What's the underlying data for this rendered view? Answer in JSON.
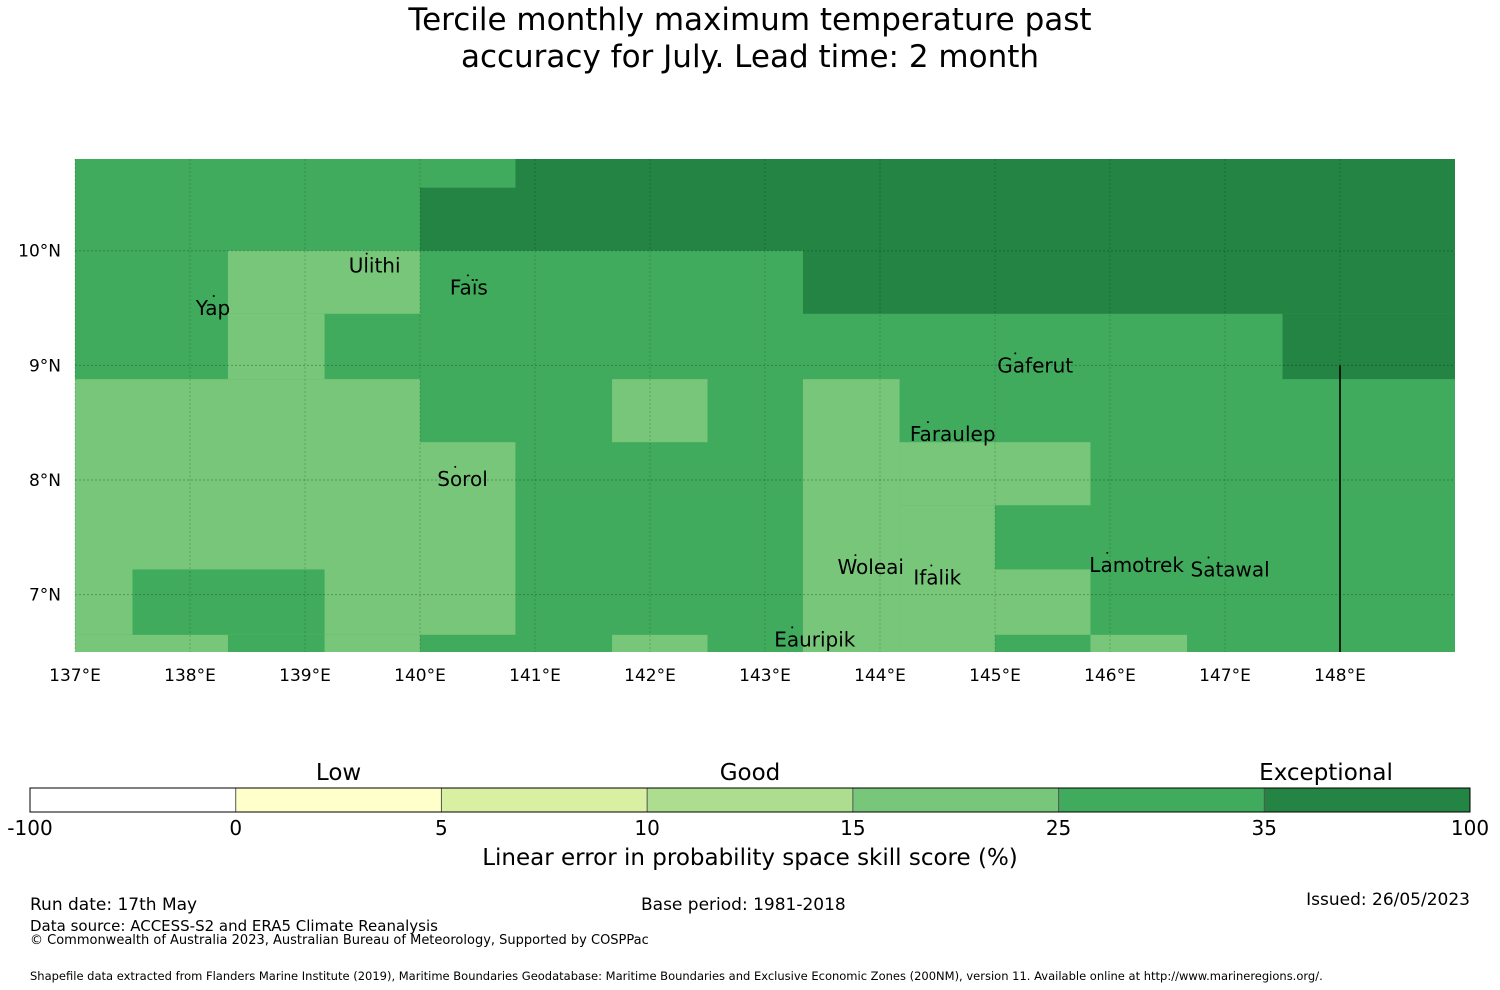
{
  "title": {
    "line1": "Tercile monthly maximum temperature past",
    "line2": "accuracy for July. Lead time: 2 month"
  },
  "map": {
    "lon_range": [
      137.0,
      149.0
    ],
    "lat_range": [
      6.5,
      10.8
    ],
    "lon_ticks": [
      {
        "value": 137,
        "label": "137°E"
      },
      {
        "value": 138,
        "label": "138°E"
      },
      {
        "value": 139,
        "label": "139°E"
      },
      {
        "value": 140,
        "label": "140°E"
      },
      {
        "value": 141,
        "label": "141°E"
      },
      {
        "value": 142,
        "label": "142°E"
      },
      {
        "value": 143,
        "label": "143°E"
      },
      {
        "value": 144,
        "label": "144°E"
      },
      {
        "value": 145,
        "label": "145°E"
      },
      {
        "value": 146,
        "label": "146°E"
      },
      {
        "value": 147,
        "label": "147°E"
      },
      {
        "value": 148,
        "label": "148°E"
      }
    ],
    "lat_ticks": [
      {
        "value": 10,
        "label": "10°N"
      },
      {
        "value": 9,
        "label": "9°N"
      },
      {
        "value": 8,
        "label": "8°N"
      },
      {
        "value": 7,
        "label": "7°N"
      }
    ],
    "category_colors": {
      "15-25": "#78c679",
      "25-35": "#41ab5d",
      "35-100": "#238443"
    },
    "background_category": "25-35",
    "skill_cells": [
      {
        "lon": [
          140.0,
          140.83
        ],
        "lat": [
          10.0,
          10.55
        ],
        "category": "35-100"
      },
      {
        "lon": [
          140.83,
          149.0
        ],
        "lat": [
          10.0,
          10.8
        ],
        "category": "35-100"
      },
      {
        "lon": [
          143.33,
          149.0
        ],
        "lat": [
          9.45,
          10.0
        ],
        "category": "35-100"
      },
      {
        "lon": [
          147.5,
          149.0
        ],
        "lat": [
          8.88,
          9.45
        ],
        "category": "35-100"
      },
      {
        "lon": [
          138.33,
          140.0
        ],
        "lat": [
          9.45,
          10.0
        ],
        "category": "15-25"
      },
      {
        "lon": [
          138.33,
          139.17
        ],
        "lat": [
          8.88,
          9.45
        ],
        "category": "15-25"
      },
      {
        "lon": [
          137.0,
          140.0
        ],
        "lat": [
          6.65,
          8.88
        ],
        "category": "15-25"
      },
      {
        "lon": [
          140.0,
          140.83
        ],
        "lat": [
          6.65,
          8.33
        ],
        "category": "15-25"
      },
      {
        "lon": [
          141.67,
          142.5
        ],
        "lat": [
          8.33,
          8.88
        ],
        "category": "15-25"
      },
      {
        "lon": [
          143.33,
          144.17
        ],
        "lat": [
          6.5,
          8.88
        ],
        "category": "15-25"
      },
      {
        "lon": [
          144.17,
          145.83
        ],
        "lat": [
          7.78,
          8.33
        ],
        "category": "15-25"
      },
      {
        "lon": [
          144.17,
          145.0
        ],
        "lat": [
          6.5,
          7.78
        ],
        "category": "15-25"
      },
      {
        "lon": [
          145.0,
          145.83
        ],
        "lat": [
          6.65,
          7.22
        ],
        "category": "15-25"
      },
      {
        "lon": [
          145.83,
          146.67
        ],
        "lat": [
          6.5,
          6.65
        ],
        "category": "15-25"
      },
      {
        "lon": [
          137.0,
          138.33
        ],
        "lat": [
          6.5,
          6.65
        ],
        "category": "15-25"
      },
      {
        "lon": [
          139.17,
          140.0
        ],
        "lat": [
          6.5,
          6.65
        ],
        "category": "15-25"
      },
      {
        "lon": [
          141.67,
          142.5
        ],
        "lat": [
          6.5,
          6.65
        ],
        "category": "15-25"
      },
      {
        "lon": [
          137.5,
          139.17
        ],
        "lat": [
          6.65,
          7.22
        ],
        "category": "25-35"
      }
    ],
    "places": [
      {
        "name": "Ulithi",
        "lon": 139.38,
        "lat": 9.87
      },
      {
        "name": "Faïs",
        "lon": 140.26,
        "lat": 9.68
      },
      {
        "name": "Yap",
        "lon": 138.05,
        "lat": 9.5
      },
      {
        "name": "Gaferut",
        "lon": 145.02,
        "lat": 9.0
      },
      {
        "name": "Faraulep",
        "lon": 144.26,
        "lat": 8.4
      },
      {
        "name": "Sorol",
        "lon": 140.15,
        "lat": 8.01
      },
      {
        "name": "Woleai",
        "lon": 143.63,
        "lat": 7.24
      },
      {
        "name": "Ifalik",
        "lon": 144.29,
        "lat": 7.15
      },
      {
        "name": "Lamotrek",
        "lon": 145.82,
        "lat": 7.26
      },
      {
        "name": "Satawal",
        "lon": 146.7,
        "lat": 7.22
      },
      {
        "name": "Eauripik",
        "lon": 143.08,
        "lat": 6.61
      }
    ],
    "boundary_line": {
      "lon": 148.0,
      "lat": [
        6.5,
        9.0
      ]
    }
  },
  "colorbar": {
    "categories": [
      {
        "label": "Low",
        "center_index": 1.5
      },
      {
        "label": "Good",
        "center_index": 3.5
      },
      {
        "label": "Exceptional",
        "center_index": 6.3
      }
    ],
    "tick_labels": [
      "-100",
      "0",
      "5",
      "10",
      "15",
      "25",
      "35",
      "100"
    ],
    "colors": [
      "#ffffff",
      "#ffffcc",
      "#d9f0a3",
      "#addd8e",
      "#78c679",
      "#41ab5d",
      "#238443"
    ],
    "title": "Linear error in probability space skill score (%)"
  },
  "footer": {
    "run_date": "Run date: 17th May",
    "base_period": "Base period: 1981-2018",
    "issued": "Issued: 26/05/2023",
    "data_source": "Data source: ACCESS-S2 and ERA5 Climate Reanalysis",
    "copyright": "© Commonwealth of Australia 2023, Australian Bureau of Meteorology, Supported by COSPPac",
    "shapefile": "Shapefile data extracted from Flanders Marine Institute (2019), Maritime Boundaries Geodatabase: Maritime Boundaries and Exclusive Economic Zones (200NM), version 11. Available online at http://www.marineregions.org/."
  }
}
